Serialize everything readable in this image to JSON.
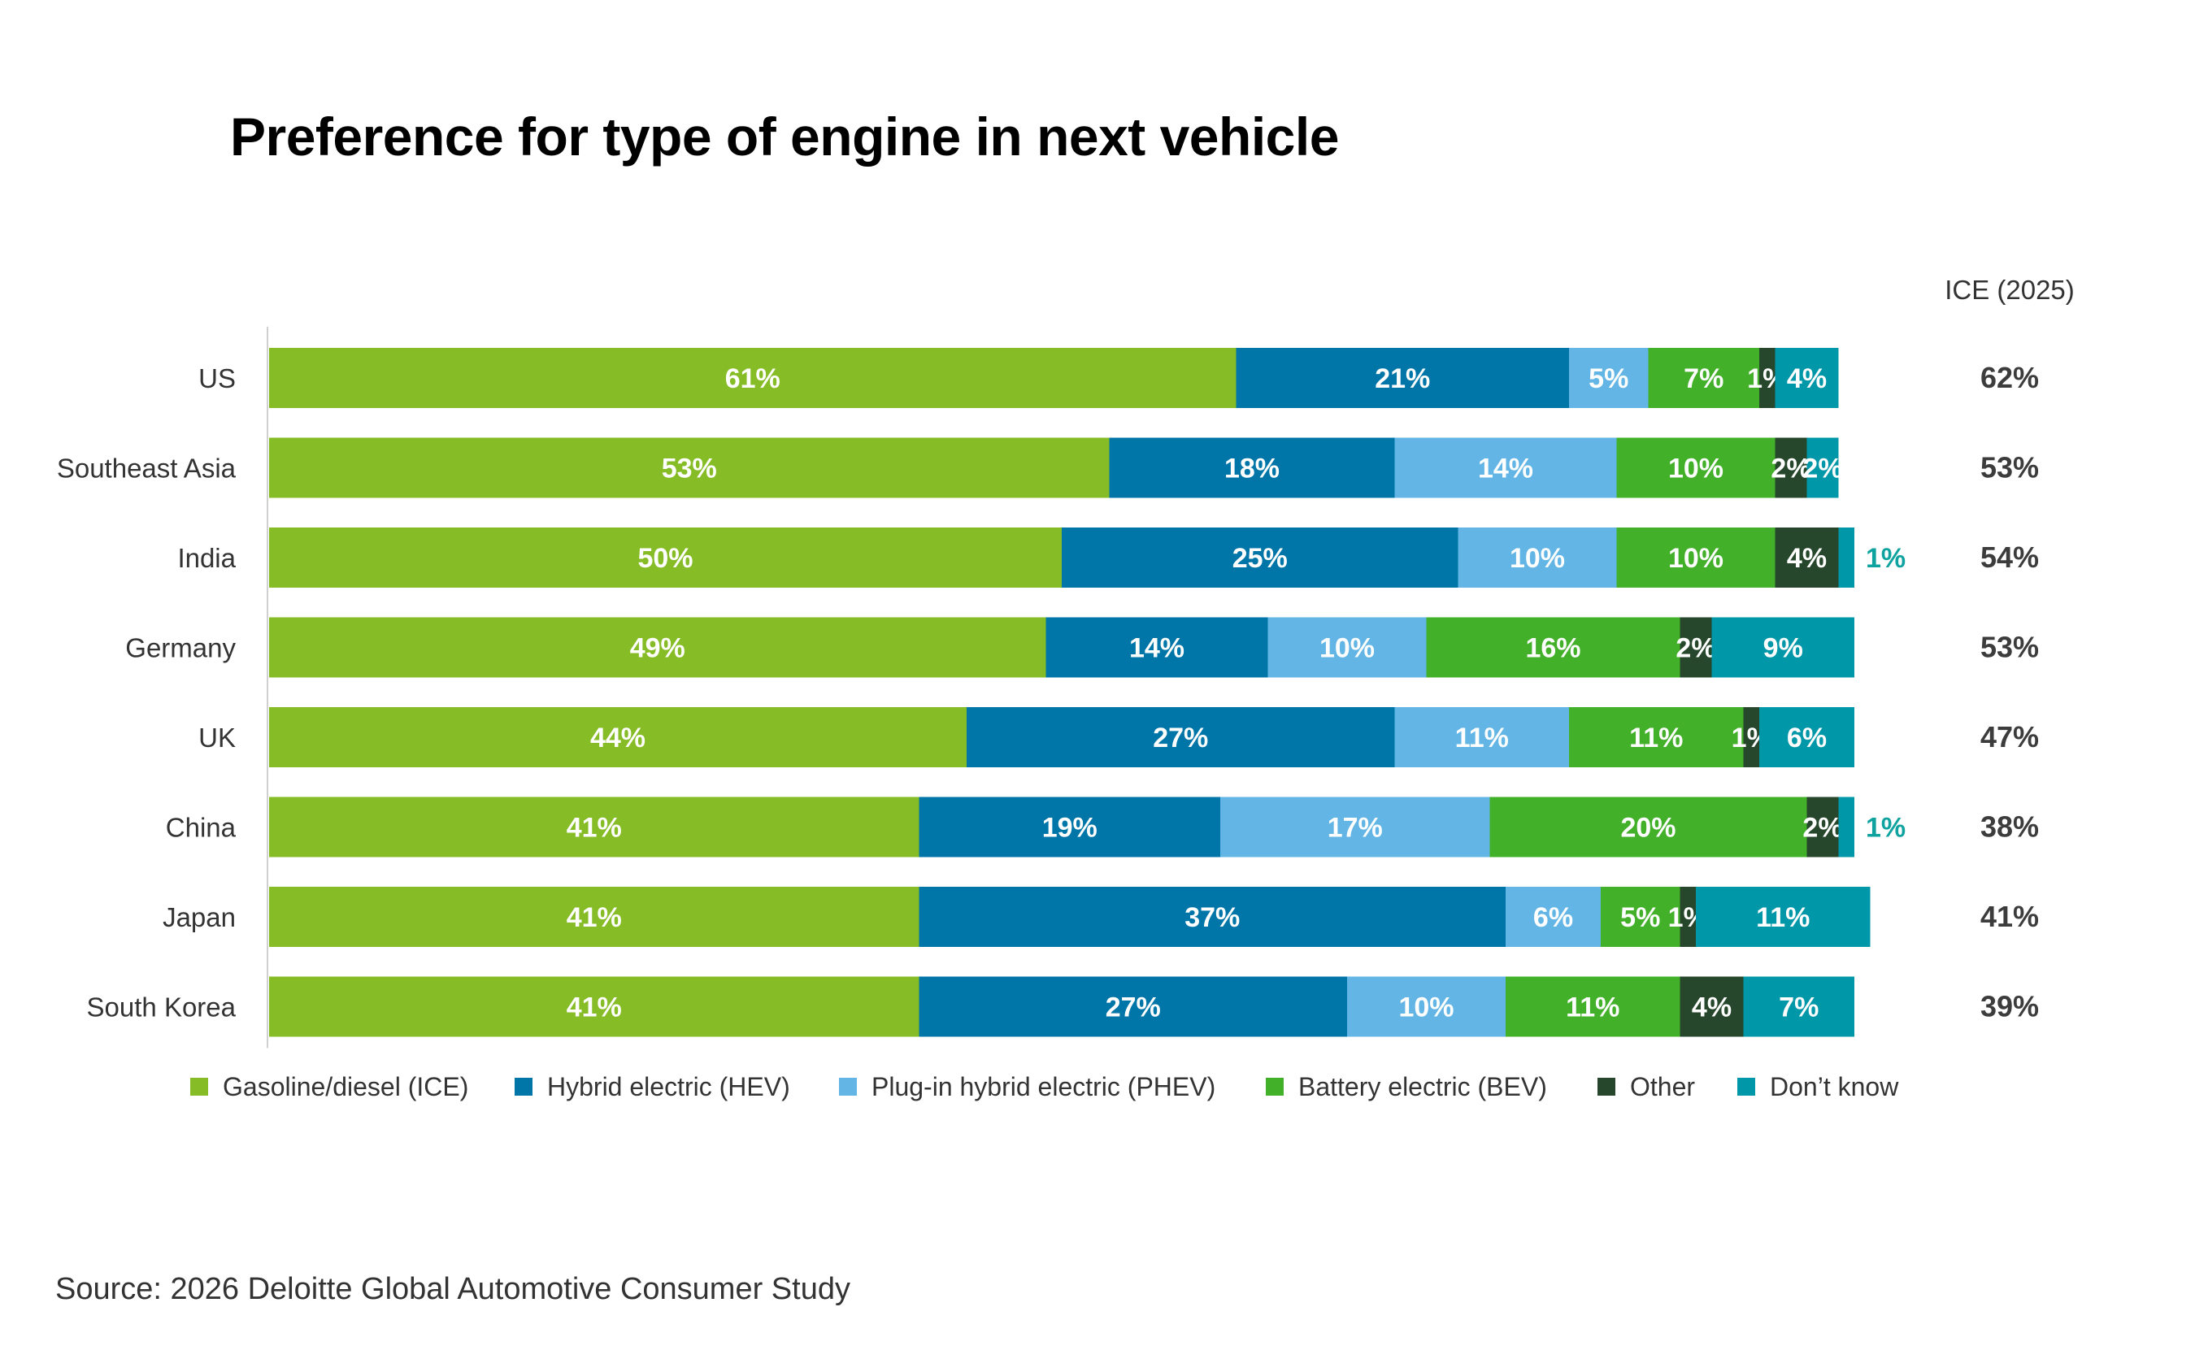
{
  "chart_data": {
    "type": "bar",
    "orientation": "horizontal",
    "stacked": true,
    "title": "Preference for type of engine in next vehicle",
    "right_column_header": "ICE (2025)",
    "categories": [
      "US",
      "Southeast Asia",
      "India",
      "Germany",
      "UK",
      "China",
      "Japan",
      "South Korea"
    ],
    "series": [
      {
        "name": "Gasoline/diesel (ICE)",
        "color": "#86bc25",
        "label_color": "#ffffff",
        "values": [
          61,
          53,
          50,
          49,
          44,
          41,
          41,
          41
        ]
      },
      {
        "name": "Hybrid electric (HEV)",
        "color": "#0076a8",
        "label_color": "#ffffff",
        "values": [
          21,
          18,
          25,
          14,
          27,
          19,
          37,
          27
        ]
      },
      {
        "name": "Plug-in hybrid electric (PHEV)",
        "color": "#62b5e5",
        "label_color": "#ffffff",
        "values": [
          5,
          14,
          10,
          10,
          11,
          17,
          6,
          10
        ]
      },
      {
        "name": "Battery electric (BEV)",
        "color": "#43b02a",
        "label_color": "#ffffff",
        "values": [
          7,
          10,
          10,
          16,
          11,
          20,
          5,
          11
        ]
      },
      {
        "name": "Other",
        "color": "#26472b",
        "label_color": "#ffffff",
        "values": [
          1,
          2,
          4,
          2,
          1,
          2,
          1,
          4
        ]
      },
      {
        "name": "Don’t know",
        "color": "#0097a9",
        "label_color": "#ffffff",
        "values": [
          4,
          2,
          1,
          9,
          6,
          1,
          11,
          7
        ]
      }
    ],
    "outside_labels": [
      {
        "category": "India",
        "series": "Don’t know",
        "text": "1%",
        "color": "#0fa3a0"
      },
      {
        "category": "China",
        "series": "Don’t know",
        "text": "1%",
        "color": "#0fa3a0"
      }
    ],
    "ice_2025": [
      "62%",
      "53%",
      "54%",
      "53%",
      "47%",
      "38%",
      "41%",
      "39%"
    ],
    "legend_position": "bottom",
    "xlim": [
      0,
      100
    ]
  },
  "source": "Source: 2026 Deloitte Global Automotive Consumer Study"
}
